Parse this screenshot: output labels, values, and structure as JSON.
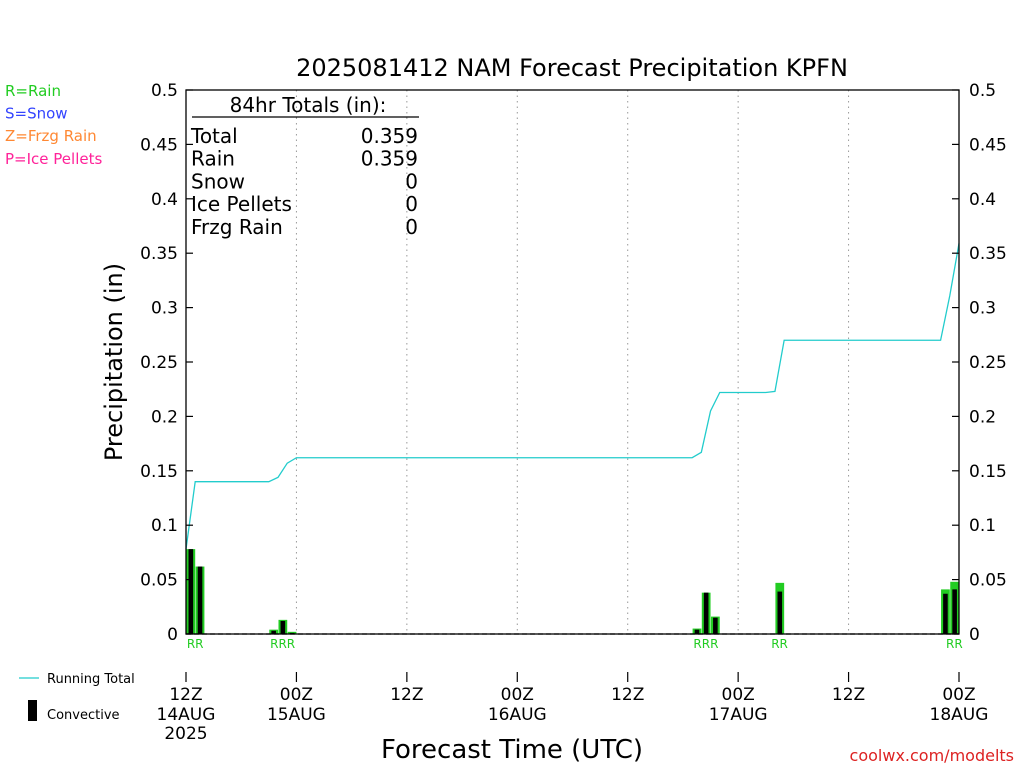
{
  "chart_data": {
    "type": "bar",
    "title": "2025081412 NAM Forecast Precipitation KPFN",
    "ylabel": "Precipitation (in)",
    "xlabel": "Forecast Time (UTC)",
    "ylim": [
      0,
      0.5
    ],
    "yticks": [
      "0",
      "0.05",
      "0.1",
      "0.15",
      "0.2",
      "0.25",
      "0.3",
      "0.35",
      "0.4",
      "0.45",
      "0.5"
    ],
    "xlim_hours": [
      0,
      84
    ],
    "xticks": [
      {
        "hour": 0,
        "label": "12Z",
        "date": "14AUG",
        "year": "2025"
      },
      {
        "hour": 12,
        "label": "00Z",
        "date": "15AUG",
        "year": ""
      },
      {
        "hour": 24,
        "label": "12Z",
        "date": "",
        "year": ""
      },
      {
        "hour": 36,
        "label": "00Z",
        "date": "16AUG",
        "year": ""
      },
      {
        "hour": 48,
        "label": "12Z",
        "date": "",
        "year": ""
      },
      {
        "hour": 60,
        "label": "00Z",
        "date": "17AUG",
        "year": ""
      },
      {
        "hour": 72,
        "label": "12Z",
        "date": "",
        "year": ""
      },
      {
        "hour": 84,
        "label": "00Z",
        "date": "18AUG",
        "year": ""
      }
    ],
    "grid": "dotted vertical at 12-hour intervals",
    "type_legend": [
      {
        "text": "R=Rain",
        "color": "#22cc22"
      },
      {
        "text": "S=Snow",
        "color": "#3344ff"
      },
      {
        "text": "Z=Frzg Rain",
        "color": "#ff8833"
      },
      {
        "text": "P=Ice Pellets",
        "color": "#ff2299"
      }
    ],
    "totals": {
      "header": "84hr Totals (in):",
      "rows": [
        {
          "label": "Total",
          "value": "0.359"
        },
        {
          "label": "Rain",
          "value": "0.359"
        },
        {
          "label": "Snow",
          "value": "0"
        },
        {
          "label": "Ice Pellets",
          "value": "0"
        },
        {
          "label": "Frzg Rain",
          "value": "0"
        }
      ]
    },
    "series": [
      {
        "name": "Rain",
        "color": "#22cc22",
        "bars": [
          {
            "hour": 1,
            "value": 0.078,
            "type": "R"
          },
          {
            "hour": 2,
            "value": 0.062,
            "type": "R"
          },
          {
            "hour": 10,
            "value": 0.004,
            "type": "R"
          },
          {
            "hour": 11,
            "value": 0.013,
            "type": "R"
          },
          {
            "hour": 12,
            "value": 0.002,
            "type": "R"
          },
          {
            "hour": 56,
            "value": 0.005,
            "type": "R"
          },
          {
            "hour": 57,
            "value": 0.038,
            "type": "R"
          },
          {
            "hour": 58,
            "value": 0.016,
            "type": "R"
          },
          {
            "hour": 65,
            "value": 0.047,
            "type": "R"
          },
          {
            "hour": 83,
            "value": 0.041,
            "type": "R"
          },
          {
            "hour": 84,
            "value": 0.048,
            "type": "R"
          }
        ]
      },
      {
        "name": "Convective",
        "color": "#000000",
        "bars": [
          {
            "hour": 1,
            "value": 0.078
          },
          {
            "hour": 2,
            "value": 0.062
          },
          {
            "hour": 10,
            "value": 0.003
          },
          {
            "hour": 11,
            "value": 0.012
          },
          {
            "hour": 12,
            "value": 0.001
          },
          {
            "hour": 56,
            "value": 0.004
          },
          {
            "hour": 57,
            "value": 0.038
          },
          {
            "hour": 58,
            "value": 0.015
          },
          {
            "hour": 65,
            "value": 0.039
          },
          {
            "hour": 83,
            "value": 0.037
          },
          {
            "hour": 84,
            "value": 0.041
          }
        ]
      },
      {
        "name": "Running Total",
        "color": "#22cccc",
        "points": [
          [
            0,
            0.078
          ],
          [
            1,
            0.14
          ],
          [
            2,
            0.14
          ],
          [
            3,
            0.14
          ],
          [
            4,
            0.14
          ],
          [
            5,
            0.14
          ],
          [
            6,
            0.14
          ],
          [
            7,
            0.14
          ],
          [
            8,
            0.14
          ],
          [
            9,
            0.14
          ],
          [
            10,
            0.144
          ],
          [
            11,
            0.157
          ],
          [
            12,
            0.162
          ],
          [
            13,
            0.162
          ],
          [
            24,
            0.162
          ],
          [
            36,
            0.162
          ],
          [
            48,
            0.162
          ],
          [
            54,
            0.162
          ],
          [
            55,
            0.162
          ],
          [
            56,
            0.167
          ],
          [
            57,
            0.205
          ],
          [
            58,
            0.222
          ],
          [
            59,
            0.222
          ],
          [
            60,
            0.222
          ],
          [
            61,
            0.222
          ],
          [
            62,
            0.222
          ],
          [
            63,
            0.222
          ],
          [
            64,
            0.223
          ],
          [
            65,
            0.27
          ],
          [
            66,
            0.27
          ],
          [
            72,
            0.27
          ],
          [
            78,
            0.27
          ],
          [
            82,
            0.27
          ],
          [
            83,
            0.311
          ],
          [
            84,
            0.359
          ]
        ]
      }
    ],
    "series_legend": [
      {
        "name": "Running Total",
        "color": "#22cccc",
        "kind": "line"
      },
      {
        "name": "Convective",
        "color": "#000000",
        "kind": "bar"
      }
    ],
    "type_labels": [
      {
        "hour": 1.5,
        "text": "RR"
      },
      {
        "hour": 11,
        "text": "RRR"
      },
      {
        "hour": 57,
        "text": "RRR"
      },
      {
        "hour": 65,
        "text": "RR"
      },
      {
        "hour": 84,
        "text": "RR"
      }
    ],
    "credit": "coolwx.com/modelts"
  }
}
